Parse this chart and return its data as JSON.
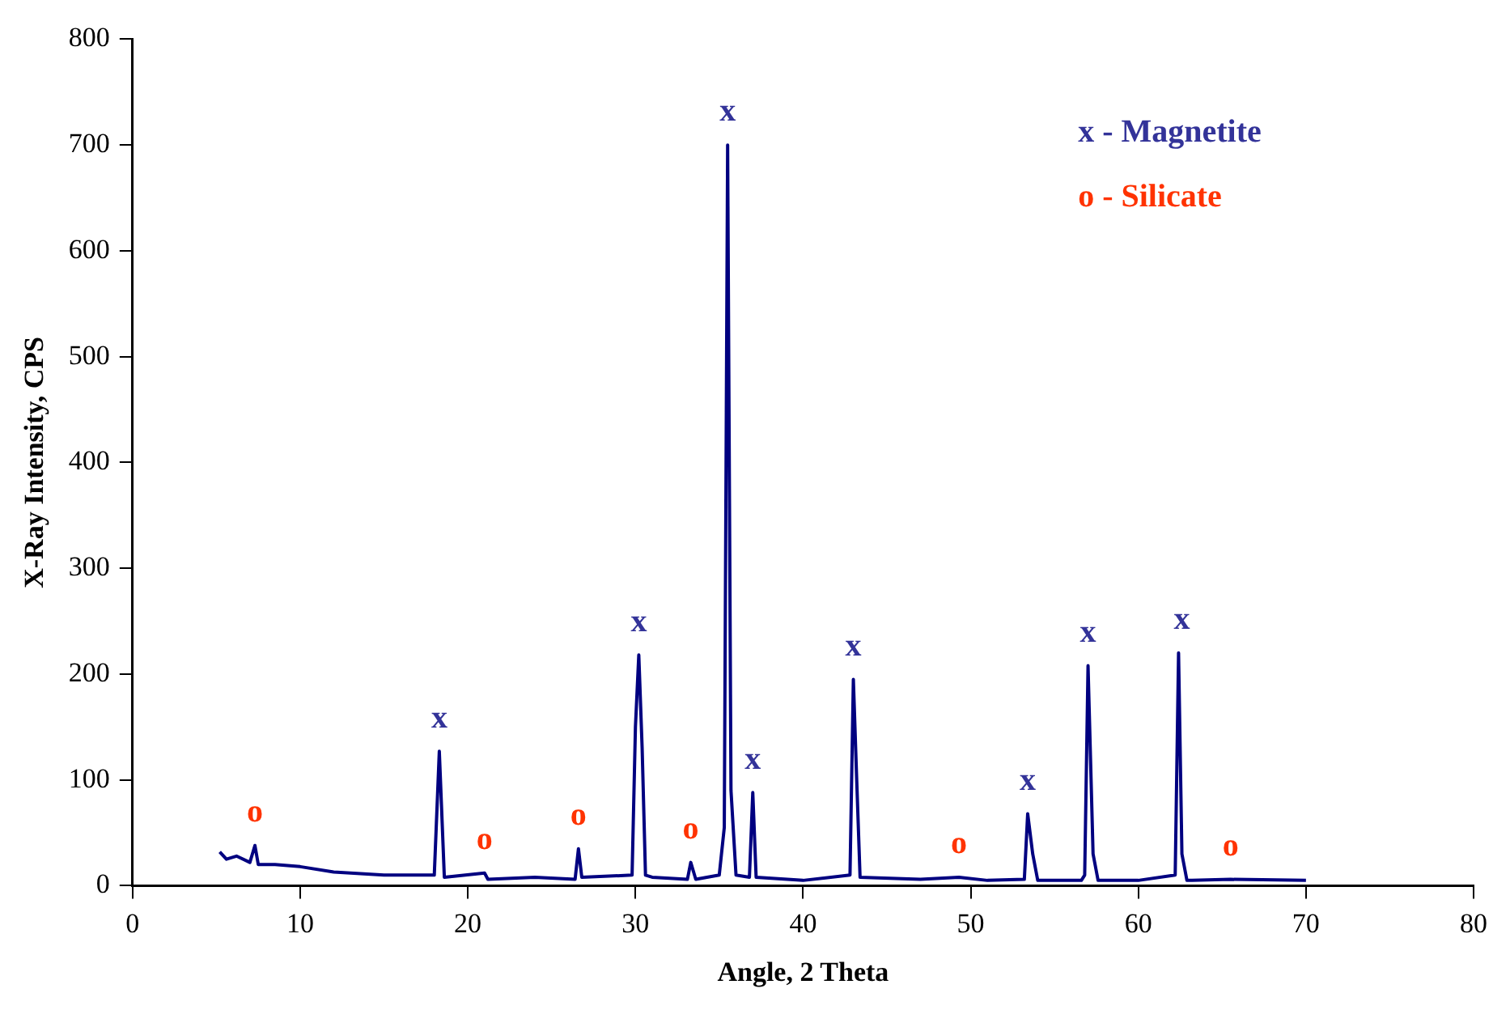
{
  "chart_data": {
    "type": "line",
    "xlabel": "Angle, 2 Theta",
    "ylabel": "X-Ray Intensity, CPS",
    "series": [
      {
        "color": "#000080",
        "x": [
          5.2,
          5.6,
          6.2,
          7.0,
          7.3,
          7.5,
          8.5,
          10,
          12,
          15,
          18,
          18.3,
          18.6,
          21,
          21.2,
          24,
          26.4,
          26.6,
          26.8,
          29.8,
          30.0,
          30.2,
          30.4,
          30.6,
          31,
          33.1,
          33.3,
          33.6,
          35.0,
          35.3,
          35.5,
          35.7,
          36.0,
          36.8,
          37.0,
          37.2,
          40,
          42.8,
          43.0,
          43.2,
          43.4,
          47,
          49.3,
          51,
          53.2,
          53.4,
          53.7,
          54.0,
          56.6,
          56.8,
          57.0,
          57.3,
          57.6,
          60,
          62.2,
          62.4,
          62.6,
          62.9,
          63.2,
          65.5,
          70
        ],
        "values": [
          32,
          25,
          28,
          22,
          38,
          20,
          20,
          18,
          13,
          10,
          10,
          127,
          8,
          12,
          6,
          8,
          6,
          35,
          8,
          10,
          150,
          218,
          130,
          10,
          8,
          6,
          22,
          6,
          10,
          55,
          700,
          90,
          10,
          8,
          88,
          8,
          5,
          10,
          195,
          100,
          8,
          6,
          8,
          5,
          6,
          68,
          30,
          5,
          5,
          10,
          208,
          30,
          5,
          5,
          10,
          220,
          30,
          5,
          5,
          6,
          5
        ]
      }
    ],
    "xlim": [
      0,
      80
    ],
    "xticks": [
      0,
      10,
      20,
      30,
      40,
      50,
      60,
      70,
      80
    ],
    "ylim": [
      0,
      800
    ],
    "yticks": [
      0,
      100,
      200,
      300,
      400,
      500,
      600,
      700,
      800
    ],
    "grid": false,
    "legend": false,
    "marker": "none",
    "line_style": "solid",
    "annotations": [
      "x - Magnetite",
      "o - Silicate",
      {
        "text": "x",
        "x": 18.3,
        "y": 127
      },
      {
        "text": "x",
        "x": 30.2,
        "y": 218
      },
      {
        "text": "x",
        "x": 35.5,
        "y": 700
      },
      {
        "text": "x",
        "x": 37.0,
        "y": 88
      },
      {
        "text": "x",
        "x": 43.0,
        "y": 195
      },
      {
        "text": "x",
        "x": 53.4,
        "y": 68
      },
      {
        "text": "x",
        "x": 57.0,
        "y": 208
      },
      {
        "text": "x",
        "x": 62.6,
        "y": 220
      },
      {
        "text": "o",
        "x": 7.3,
        "y": 38
      },
      {
        "text": "o",
        "x": 21.0,
        "y": 12
      },
      {
        "text": "o",
        "x": 26.6,
        "y": 35
      },
      {
        "text": "o",
        "x": 33.3,
        "y": 22
      },
      {
        "text": "o",
        "x": 49.3,
        "y": 8
      },
      {
        "text": "o",
        "x": 65.5,
        "y": 6
      }
    ]
  }
}
